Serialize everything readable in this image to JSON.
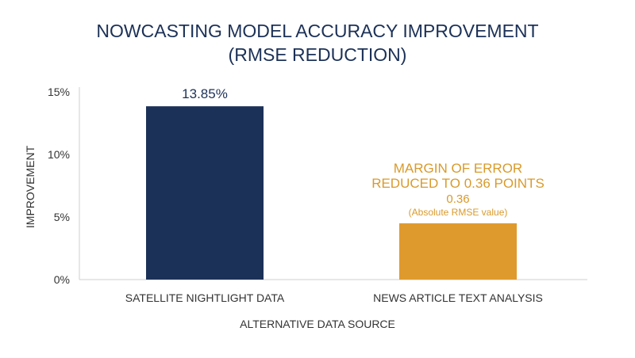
{
  "chart_data": {
    "type": "bar",
    "title_lines": [
      "NOWCASTING MODEL ACCURACY IMPROVEMENT",
      "(RMSE REDUCTION)"
    ],
    "xlabel": "ALTERNATIVE DATA SOURCE",
    "ylabel": "IMPROVEMENT",
    "ylim": [
      0,
      15
    ],
    "yticks": [
      {
        "value": 0,
        "label": "0%"
      },
      {
        "value": 5,
        "label": "5%"
      },
      {
        "value": 10,
        "label": "10%"
      },
      {
        "value": 15,
        "label": "15%"
      }
    ],
    "grid": false,
    "categories": [
      "SATELLITE NIGHTLIGHT DATA",
      "NEWS ARTICLE TEXT ANALYSIS"
    ],
    "values": [
      13.85,
      4.5
    ],
    "bar_colors": [
      "#1c3157",
      "#df9a2d"
    ],
    "data_labels": [
      {
        "lines": [
          "13.85%"
        ],
        "color": "#1c3157"
      },
      {
        "lines": [
          "MARGIN OF ERROR",
          "REDUCED TO 0.36 POINTS",
          "0.36",
          "(Absolute RMSE value)"
        ],
        "color": "#d99a2b"
      }
    ],
    "colors": {
      "title": "#1c3157",
      "axis": "#333333",
      "annotation": "#d99a2b"
    }
  }
}
